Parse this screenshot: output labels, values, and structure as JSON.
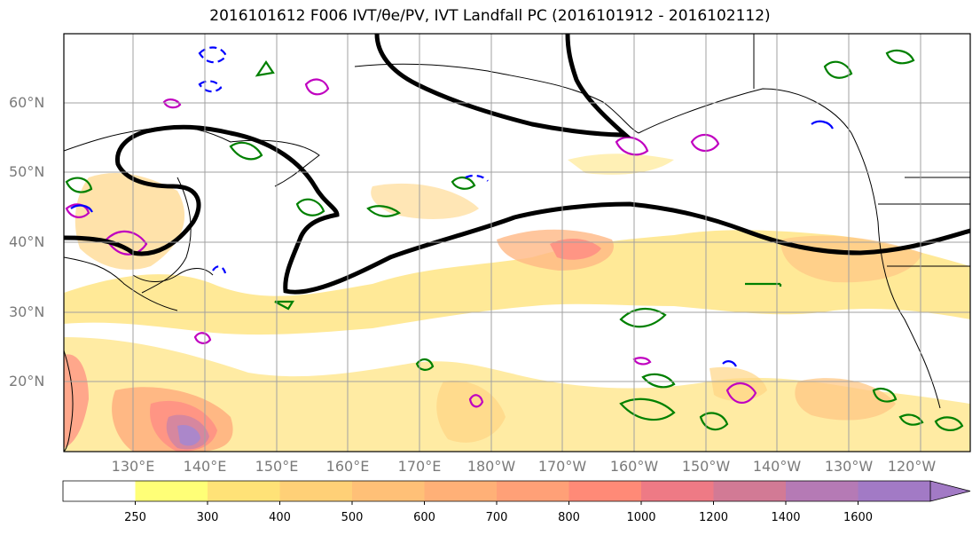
{
  "title": "2016101612 F006 IVT/θe/PV, IVT Landfall PC (2016101912 - 2016102112)",
  "lat_labels": [
    "60°N",
    "50°N",
    "40°N",
    "30°N",
    "20°N"
  ],
  "lon_labels": [
    "130°E",
    "140°E",
    "150°E",
    "160°E",
    "170°E",
    "180°W",
    "170°W",
    "160°W",
    "150°W",
    "140°W",
    "130°W",
    "120°W"
  ],
  "colorbar": {
    "labels": [
      "250",
      "300",
      "400",
      "500",
      "600",
      "700",
      "800",
      "1000",
      "1200",
      "1400",
      "1600"
    ],
    "colors": [
      "#ffffff",
      "#ffff77",
      "#ffe277",
      "#ffd077",
      "#ffc077",
      "#ffb077",
      "#ffa077",
      "#ff8a77",
      "#ee7a85",
      "#d27a95",
      "#b57ab5",
      "#a27ac5"
    ]
  },
  "colors": {
    "front": "#000000",
    "theta": "#008000",
    "pv_positive": "#c000c0",
    "pv_negative": "#0000ff",
    "coast": "#000000"
  }
}
